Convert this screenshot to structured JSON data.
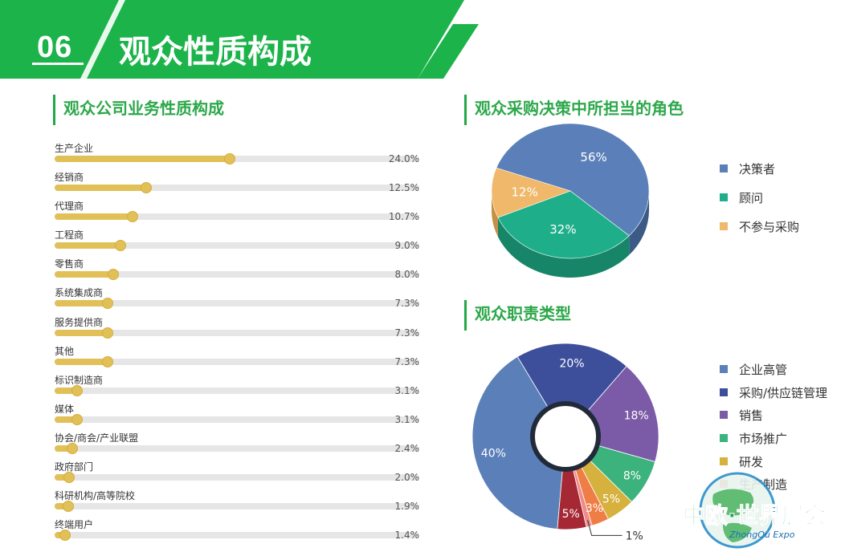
{
  "header": {
    "section_number": "06",
    "title": "观众性质构成",
    "bg_color": "#1bb34a"
  },
  "business": {
    "title": "观众公司业务性质构成",
    "items": [
      {
        "label": "生产企业",
        "value": 24.0,
        "text": "24.0%"
      },
      {
        "label": "经销商",
        "value": 12.5,
        "text": "12.5%"
      },
      {
        "label": "代理商",
        "value": 10.7,
        "text": "10.7%"
      },
      {
        "label": "工程商",
        "value": 9.0,
        "text": "9.0%"
      },
      {
        "label": "零售商",
        "value": 8.0,
        "text": "8.0%"
      },
      {
        "label": "系统集成商",
        "value": 7.3,
        "text": "7.3%"
      },
      {
        "label": "服务提供商",
        "value": 7.3,
        "text": "7.3%"
      },
      {
        "label": "其他",
        "value": 7.3,
        "text": "7.3%"
      },
      {
        "label": "标识制造商",
        "value": 3.1,
        "text": "3.1%"
      },
      {
        "label": "媒体",
        "value": 3.1,
        "text": "3.1%"
      },
      {
        "label": "协会/商会/产业联盟",
        "value": 2.4,
        "text": "2.4%"
      },
      {
        "label": "政府部门",
        "value": 2.0,
        "text": "2.0%"
      },
      {
        "label": "科研机构/高等院校",
        "value": 1.9,
        "text": "1.9%"
      },
      {
        "label": "终端用户",
        "value": 1.4,
        "text": "1.4%"
      }
    ],
    "bar_color": "#e2c058"
  },
  "purchase": {
    "title": "观众采购决策中所担当的角色",
    "legend": [
      "决策者",
      "顾问",
      "不参与采购"
    ]
  },
  "duty": {
    "title": "观众职责类型",
    "legend": [
      "企业高管",
      "采购/供应链管理",
      "销售",
      "市场推广",
      "研发",
      "生产制造"
    ]
  },
  "logo": {
    "text": "中欧·世界展会",
    "subtext": "ZhongOu Expo"
  },
  "chart_data": [
    {
      "type": "bar",
      "orientation": "horizontal",
      "categories": [
        "生产企业",
        "经销商",
        "代理商",
        "工程商",
        "零售商",
        "系统集成商",
        "服务提供商",
        "其他",
        "标识制造商",
        "媒体",
        "协会/商会/产业联盟",
        "政府部门",
        "科研机构/高等院校",
        "终端用户"
      ],
      "values": [
        24.0,
        12.5,
        10.7,
        9.0,
        8.0,
        7.3,
        7.3,
        7.3,
        3.1,
        3.1,
        2.4,
        2.0,
        1.9,
        1.4
      ],
      "title": "观众公司业务性质构成",
      "xlim": [
        0,
        50
      ]
    },
    {
      "type": "pie",
      "title": "观众采购决策中所担当的角色",
      "categories": [
        "决策者",
        "顾问",
        "不参与采购"
      ],
      "values": [
        56,
        32,
        12
      ],
      "labels": [
        "56%",
        "32%",
        "12%"
      ],
      "colors": [
        "#5b80b9",
        "#1fae8a",
        "#efb86b"
      ],
      "side_colors": [
        "#3b5a85",
        "#178568",
        "#c58f44"
      ],
      "legend_position": "right",
      "style": "3d"
    },
    {
      "type": "pie",
      "style": "donut",
      "title": "观众职责类型",
      "categories": [
        "企业高管",
        "采购/供应链管理",
        "销售",
        "市场推广",
        "研发",
        "生产制造",
        "",
        ""
      ],
      "values": [
        40,
        20,
        18,
        8,
        5,
        3,
        1,
        5
      ],
      "labels": [
        "40%",
        "20%",
        "18%",
        "8%",
        "5%",
        "3%",
        "1%",
        "5%"
      ],
      "colors": [
        "#5b80b9",
        "#3d4f9a",
        "#7b5aa7",
        "#3cb37c",
        "#d6b13e",
        "#ef7d46",
        "#f08a8a",
        "#a52834"
      ],
      "legend_position": "right"
    }
  ]
}
